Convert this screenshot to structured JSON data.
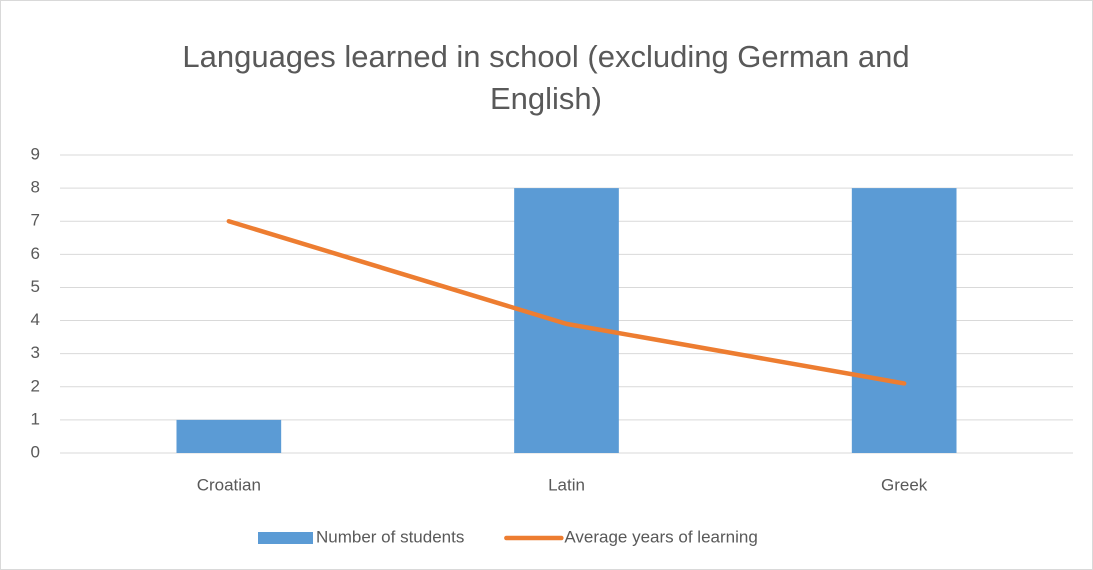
{
  "chart_data": {
    "type": "bar",
    "title": "Languages learned in school (excluding German and English)",
    "categories": [
      "Croatian",
      "Latin",
      "Greek"
    ],
    "series": [
      {
        "name": "Number of students",
        "type": "bar",
        "color": "#5b9bd5",
        "values": [
          1,
          8,
          8
        ]
      },
      {
        "name": "Average years of learning",
        "type": "line",
        "color": "#ed7d31",
        "values": [
          7,
          3.9,
          2.1
        ]
      }
    ],
    "ylim": [
      0,
      9
    ],
    "yticks": [
      0,
      1,
      2,
      3,
      4,
      5,
      6,
      7,
      8,
      9
    ],
    "grid": true,
    "legend": "bottom"
  }
}
